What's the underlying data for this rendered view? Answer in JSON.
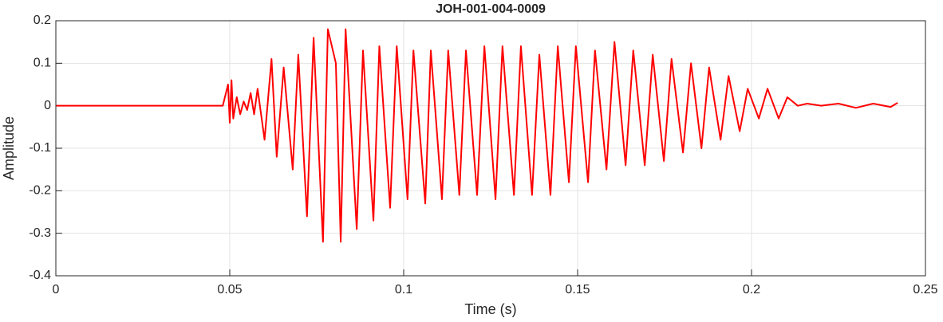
{
  "chart_data": {
    "type": "line",
    "title": "JOH-001-004-0009",
    "xlabel": "Time (s)",
    "ylabel": "Amplitude",
    "x": [
      0,
      0.01,
      0.02,
      0.03,
      0.04,
      0.048,
      0.0495,
      0.05,
      0.0505,
      0.051,
      0.052,
      0.053,
      0.054,
      0.055,
      0.056,
      0.057,
      0.058,
      0.06,
      0.062,
      0.0635,
      0.0655,
      0.0681,
      0.0697,
      0.0722,
      0.0741,
      0.0768,
      0.0782,
      0.0805,
      0.0819,
      0.0833,
      0.0865,
      0.0883,
      0.0913,
      0.093,
      0.0961,
      0.098,
      0.1011,
      0.1028,
      0.1062,
      0.1078,
      0.111,
      0.1128,
      0.116,
      0.1179,
      0.1211,
      0.1232,
      0.1264,
      0.1284,
      0.1317,
      0.1337,
      0.1369,
      0.139,
      0.1422,
      0.1443,
      0.1475,
      0.1495,
      0.153,
      0.155,
      0.1583,
      0.1606,
      0.1638,
      0.166,
      0.1693,
      0.1716,
      0.1748,
      0.177,
      0.1803,
      0.1826,
      0.1856,
      0.1878,
      0.1911,
      0.1934,
      0.1966,
      0.1989,
      0.2021,
      0.2046,
      0.2078,
      0.2103,
      0.2133,
      0.216,
      0.22,
      0.225,
      0.23,
      0.235,
      0.24,
      0.242
    ],
    "values": [
      0,
      0,
      0,
      0,
      0,
      0,
      0.05,
      -0.04,
      0.06,
      -0.03,
      0.02,
      -0.02,
      0.01,
      -0.01,
      0.03,
      -0.02,
      0.04,
      -0.08,
      0.11,
      -0.12,
      0.09,
      -0.15,
      0.12,
      -0.26,
      0.16,
      -0.32,
      0.18,
      0.1,
      -0.32,
      0.18,
      -0.29,
      0.13,
      -0.27,
      0.14,
      -0.24,
      0.14,
      -0.22,
      0.13,
      -0.23,
      0.13,
      -0.22,
      0.13,
      -0.21,
      0.13,
      -0.21,
      0.14,
      -0.22,
      0.14,
      -0.21,
      0.14,
      -0.21,
      0.12,
      -0.21,
      0.14,
      -0.18,
      0.14,
      -0.18,
      0.13,
      -0.15,
      0.15,
      -0.14,
      0.13,
      -0.14,
      0.12,
      -0.13,
      0.11,
      -0.11,
      0.1,
      -0.1,
      0.09,
      -0.08,
      0.07,
      -0.06,
      0.04,
      -0.03,
      0.04,
      -0.03,
      0.02,
      0,
      0.005,
      0,
      0.005,
      -0.005,
      0.005,
      -0.003,
      0.007
    ],
    "color": "#ff0000",
    "xlim": [
      0,
      0.25
    ],
    "ylim": [
      -0.4,
      0.2
    ],
    "xticks": [
      0,
      0.05,
      0.1,
      0.15,
      0.2,
      0.25
    ],
    "yticks": [
      -0.4,
      -0.3,
      -0.2,
      -0.1,
      0,
      0.1,
      0.2
    ],
    "grid": true
  }
}
